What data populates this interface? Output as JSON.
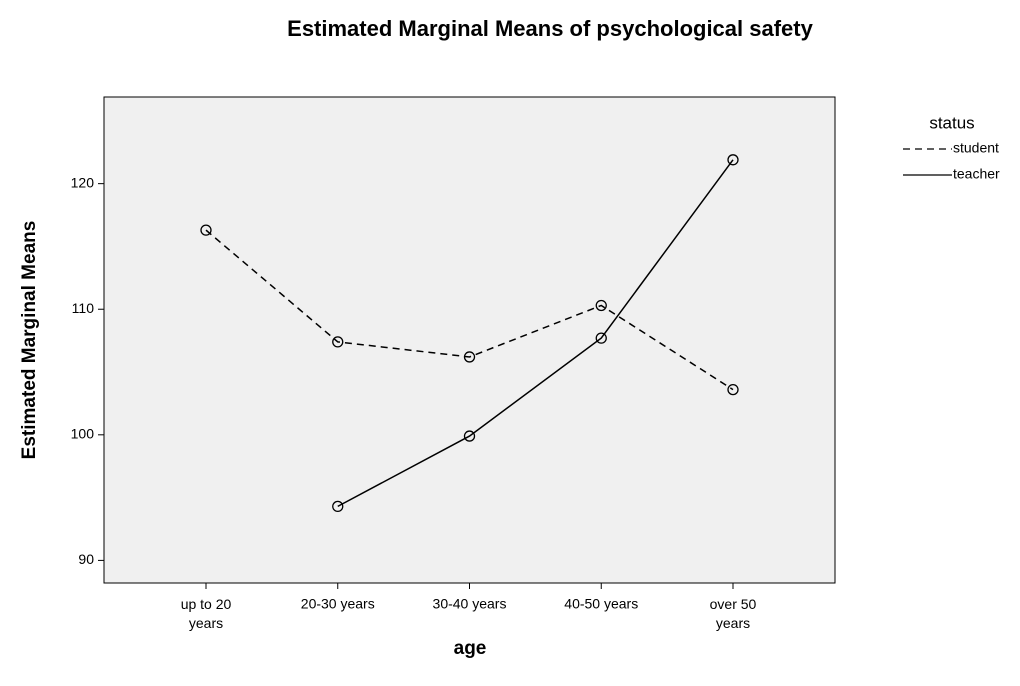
{
  "chart_data": {
    "type": "line",
    "title": "Estimated Marginal Means of psychological safety",
    "x_label": "age",
    "y_label": "Estimated Marginal Means",
    "categories": [
      "up to 20 years",
      "20-30 years",
      "30-40 years",
      "40-50 years",
      "over 50 years"
    ],
    "series": [
      {
        "name": "student",
        "color": "#000000",
        "dash": "dashed",
        "values": [
          116.3,
          107.4,
          106.2,
          110.3,
          103.6
        ]
      },
      {
        "name": "teacher",
        "color": "#000000",
        "dash": "solid",
        "values": [
          null,
          94.3,
          99.9,
          107.7,
          121.9
        ]
      }
    ],
    "legend_title": "status",
    "ylim": [
      88.2,
      126.9
    ],
    "yticks": [
      90,
      100,
      110,
      120
    ],
    "grid": false
  }
}
